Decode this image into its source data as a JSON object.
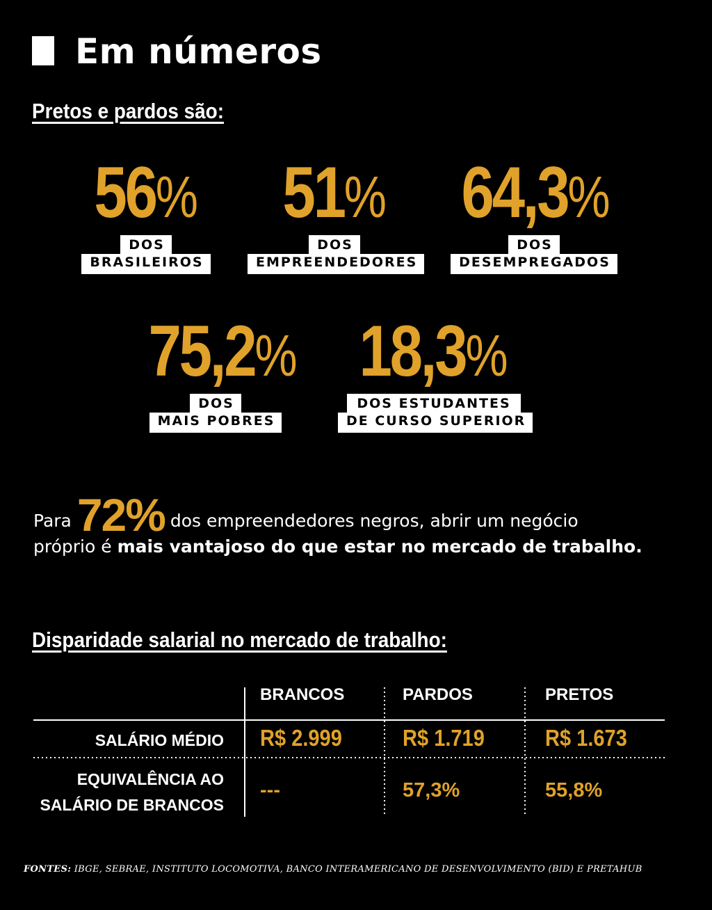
{
  "title": "Em números",
  "section1": {
    "heading": "Pretos e pardos são:",
    "stats": [
      {
        "number": "56",
        "suffix": "%",
        "line1": "DOS",
        "line2": "BRASILEIROS"
      },
      {
        "number": "51",
        "suffix": "%",
        "line1": "DOS",
        "line2": "EMPREENDEDORES"
      },
      {
        "number": "64,3",
        "suffix": "%",
        "line1": "DOS",
        "line2": "DESEMPREGADOS"
      },
      {
        "number": "75,2",
        "suffix": "%",
        "line1": "DOS",
        "line2": "MAIS POBRES"
      },
      {
        "number": "18,3",
        "suffix": "%",
        "line1": "DOS ESTUDANTES",
        "line2": "DE CURSO SUPERIOR"
      }
    ]
  },
  "highlight": {
    "prefix": "Para ",
    "number": "72%",
    "line1_rest": " dos empreendedores negros, abrir um negócio",
    "line2_start": "próprio é ",
    "line2_bold": "mais vantajoso do que estar no mercado de trabalho."
  },
  "section2": {
    "heading": "Disparidade salarial no mercado de trabalho:",
    "columns": [
      "BRANCOS",
      "PARDOS",
      "PRETOS"
    ],
    "rows": [
      {
        "label_lines": [
          "SALÁRIO MÉDIO"
        ],
        "values": [
          "R$ 2.999",
          "R$ 1.719",
          "R$ 1.673"
        ]
      },
      {
        "label_lines": [
          "EQUIVALÊNCIA AO",
          "SALÁRIO DE BRANCOS"
        ],
        "values": [
          "---",
          "57,3%",
          "55,8%"
        ]
      }
    ]
  },
  "footer": {
    "label": "FONTES:",
    "text": " IBGE, SEBRAE, INSTITUTO LOCOMOTIVA, BANCO INTERAMERICANO DE DESENVOLVIMENTO (BID) E PRETAHUB"
  },
  "colors": {
    "accent": "#e0a22a",
    "background": "#000000",
    "text": "#ffffff"
  }
}
